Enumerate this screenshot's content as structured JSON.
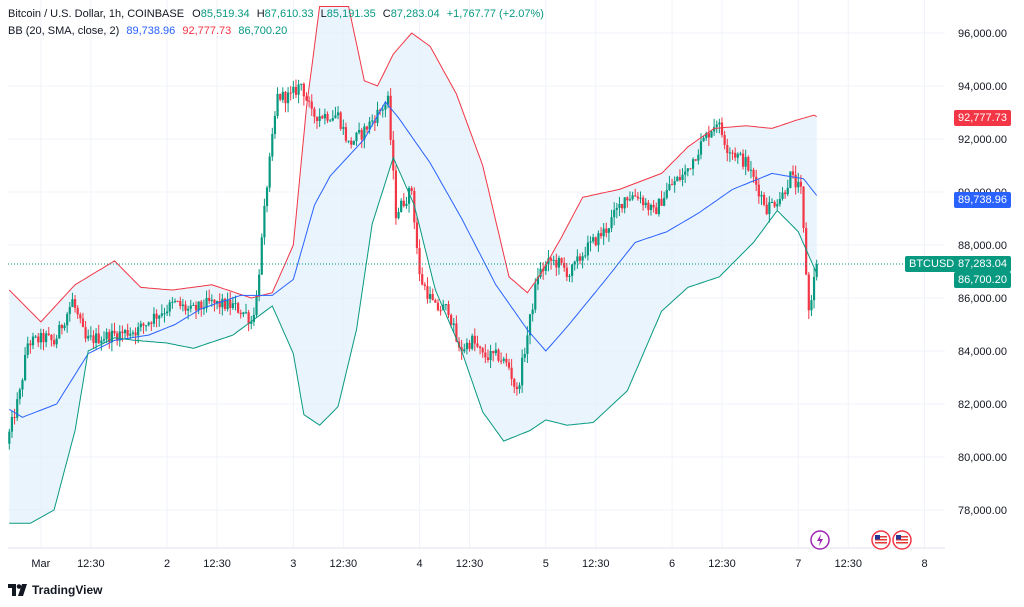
{
  "legend": {
    "symbol_line": "Bitcoin / U.S. Dollar, 1h, COINBASE",
    "o_label": "O",
    "o_value": "85,519.34",
    "h_label": "H",
    "h_value": "87,610.33",
    "l_label": "L",
    "l_value": "85,191.35",
    "c_label": "C",
    "c_value": "87,283.04",
    "change": "+1,767.77 (+2.07%)",
    "bb_label": "BB (20, SMA, close, 2)",
    "bb_basis": "89,738.96",
    "bb_upper": "92,777.73",
    "bb_lower": "86,700.20"
  },
  "price_tags": {
    "upper": "92,777.73",
    "basis": "89,738.96",
    "symbol": "BTCUSD",
    "last": "87,283.04",
    "lower": "86,700.20"
  },
  "brand": {
    "name": "TradingView"
  },
  "colors": {
    "up": "#089981",
    "down": "#f23645",
    "basis": "#2962ff",
    "upper": "#f23645",
    "lower": "#089981",
    "fill": "#e3f0fb"
  },
  "chart_data": {
    "type": "candlestick",
    "y_ticks": [
      "78,000.00",
      "80,000.00",
      "82,000.00",
      "84,000.00",
      "86,000.00",
      "88,000.00",
      "90,000.00",
      "92,000.00",
      "94,000.00",
      "96,000.00"
    ],
    "y_tick_values": [
      78000,
      80000,
      82000,
      84000,
      86000,
      88000,
      90000,
      92000,
      94000,
      96000
    ],
    "ylim": [
      76600,
      97000
    ],
    "x_ticks": [
      "Mar",
      "12:30",
      "2",
      "12:30",
      "3",
      "12:30",
      "4",
      "12:30",
      "5",
      "12:30",
      "6",
      "12:30",
      "7",
      "12:30",
      "8"
    ],
    "x_tick_index": [
      12,
      31,
      60,
      79,
      108,
      127,
      156,
      175,
      204,
      223,
      252,
      271,
      300,
      319,
      348
    ],
    "bar_count": 308,
    "last_price": 87283.04,
    "bb_upper_path": [
      [
        0,
        86300
      ],
      [
        12,
        85100
      ],
      [
        25,
        86500
      ],
      [
        40,
        87400
      ],
      [
        50,
        86400
      ],
      [
        62,
        86300
      ],
      [
        77,
        86500
      ],
      [
        92,
        86000
      ],
      [
        100,
        86200
      ],
      [
        108,
        88000
      ],
      [
        113,
        93200
      ],
      [
        118,
        97000
      ],
      [
        129,
        97000
      ],
      [
        135,
        94200
      ],
      [
        140,
        94000
      ],
      [
        146,
        95200
      ],
      [
        153,
        96000
      ],
      [
        160,
        95500
      ],
      [
        170,
        93700
      ],
      [
        180,
        91000
      ],
      [
        190,
        86800
      ],
      [
        197,
        86200
      ],
      [
        202,
        86900
      ],
      [
        210,
        88300
      ],
      [
        218,
        89800
      ],
      [
        232,
        90100
      ],
      [
        248,
        90700
      ],
      [
        258,
        91700
      ],
      [
        268,
        92400
      ],
      [
        280,
        92500
      ],
      [
        290,
        92400
      ],
      [
        299,
        92700
      ],
      [
        306,
        92900
      ],
      [
        308,
        92780
      ]
    ],
    "bb_basis_path": [
      [
        0,
        81800
      ],
      [
        5,
        81500
      ],
      [
        18,
        82000
      ],
      [
        30,
        83900
      ],
      [
        40,
        84400
      ],
      [
        53,
        84600
      ],
      [
        63,
        85000
      ],
      [
        73,
        85600
      ],
      [
        88,
        86100
      ],
      [
        100,
        86100
      ],
      [
        108,
        86700
      ],
      [
        116,
        89500
      ],
      [
        122,
        90600
      ],
      [
        135,
        92000
      ],
      [
        143,
        93400
      ],
      [
        148,
        92800
      ],
      [
        160,
        91100
      ],
      [
        172,
        89000
      ],
      [
        185,
        86500
      ],
      [
        197,
        84800
      ],
      [
        204,
        84000
      ],
      [
        212,
        84900
      ],
      [
        226,
        86600
      ],
      [
        238,
        88100
      ],
      [
        250,
        88500
      ],
      [
        262,
        89200
      ],
      [
        275,
        90100
      ],
      [
        290,
        90700
      ],
      [
        302,
        90500
      ],
      [
        308,
        89740
      ]
    ],
    "bb_lower_path": [
      [
        0,
        77500
      ],
      [
        8,
        77500
      ],
      [
        17,
        78000
      ],
      [
        25,
        81000
      ],
      [
        30,
        84000
      ],
      [
        40,
        84500
      ],
      [
        48,
        84400
      ],
      [
        60,
        84300
      ],
      [
        70,
        84100
      ],
      [
        85,
        84600
      ],
      [
        100,
        85700
      ],
      [
        108,
        83900
      ],
      [
        112,
        81600
      ],
      [
        118,
        81200
      ],
      [
        125,
        81900
      ],
      [
        132,
        84800
      ],
      [
        138,
        88800
      ],
      [
        146,
        91300
      ],
      [
        154,
        89500
      ],
      [
        162,
        86300
      ],
      [
        172,
        84000
      ],
      [
        180,
        81700
      ],
      [
        188,
        80600
      ],
      [
        198,
        81000
      ],
      [
        204,
        81400
      ],
      [
        212,
        81200
      ],
      [
        222,
        81300
      ],
      [
        235,
        82500
      ],
      [
        248,
        85500
      ],
      [
        258,
        86400
      ],
      [
        270,
        86800
      ],
      [
        283,
        88100
      ],
      [
        292,
        89300
      ],
      [
        300,
        88500
      ],
      [
        308,
        86700
      ]
    ],
    "price_path": [
      [
        0,
        80500
      ],
      [
        5,
        82400
      ],
      [
        8,
        84300
      ],
      [
        15,
        84500
      ],
      [
        18,
        84300
      ],
      [
        25,
        85900
      ],
      [
        30,
        84400
      ],
      [
        40,
        84600
      ],
      [
        50,
        84800
      ],
      [
        56,
        85300
      ],
      [
        64,
        85800
      ],
      [
        70,
        85500
      ],
      [
        77,
        85800
      ],
      [
        86,
        85700
      ],
      [
        91,
        85400
      ],
      [
        93,
        85100
      ],
      [
        95,
        86000
      ],
      [
        99,
        90300
      ],
      [
        103,
        93600
      ],
      [
        108,
        93600
      ],
      [
        112,
        94100
      ],
      [
        116,
        92900
      ],
      [
        122,
        92900
      ],
      [
        126,
        92900
      ],
      [
        130,
        91800
      ],
      [
        135,
        92200
      ],
      [
        142,
        93100
      ],
      [
        145,
        93400
      ],
      [
        148,
        89200
      ],
      [
        154,
        90100
      ],
      [
        157,
        86800
      ],
      [
        163,
        85600
      ],
      [
        168,
        85600
      ],
      [
        172,
        84000
      ],
      [
        177,
        84400
      ],
      [
        181,
        83800
      ],
      [
        187,
        83800
      ],
      [
        191,
        83400
      ],
      [
        194,
        82400
      ],
      [
        198,
        84600
      ],
      [
        202,
        86900
      ],
      [
        207,
        87400
      ],
      [
        210,
        87300
      ],
      [
        214,
        86900
      ],
      [
        220,
        87800
      ],
      [
        228,
        88600
      ],
      [
        235,
        89800
      ],
      [
        240,
        89900
      ],
      [
        246,
        89200
      ],
      [
        252,
        90200
      ],
      [
        258,
        90700
      ],
      [
        264,
        91800
      ],
      [
        270,
        92700
      ],
      [
        274,
        91700
      ],
      [
        281,
        91100
      ],
      [
        285,
        90300
      ],
      [
        289,
        89400
      ],
      [
        295,
        89900
      ],
      [
        298,
        90600
      ],
      [
        302,
        90000
      ],
      [
        305,
        85500
      ],
      [
        308,
        87283
      ]
    ]
  }
}
